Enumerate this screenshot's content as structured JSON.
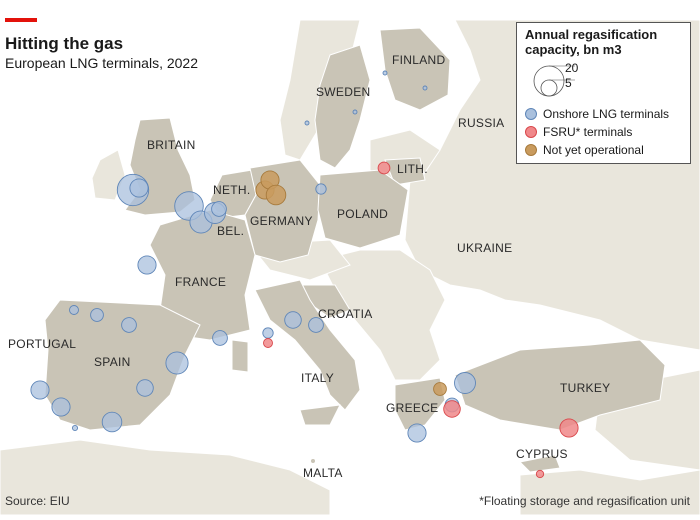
{
  "header": {
    "title": "Hitting the gas",
    "subtitle": "European LNG terminals, 2022"
  },
  "legend": {
    "title": "Annual regasification capacity, bn m3",
    "size_large": "20",
    "size_small": "5",
    "items": [
      {
        "label": "Onshore LNG terminals",
        "color": "#a9c0dd",
        "stroke": "#5f86b8"
      },
      {
        "label": "FSRU* terminals",
        "color": "#f0888a",
        "stroke": "#d9474b"
      },
      {
        "label": "Not yet operational",
        "color": "#c99b5e",
        "stroke": "#a77a3c"
      }
    ]
  },
  "countries": [
    {
      "key": "finland",
      "label": "FINLAND"
    },
    {
      "key": "sweden",
      "label": "SWEDEN"
    },
    {
      "key": "russia",
      "label": "RUSSIA"
    },
    {
      "key": "britain",
      "label": "BRITAIN"
    },
    {
      "key": "lith",
      "label": "LITH."
    },
    {
      "key": "neth",
      "label": "NETH."
    },
    {
      "key": "germany",
      "label": "GERMANY"
    },
    {
      "key": "poland",
      "label": "POLAND"
    },
    {
      "key": "bel",
      "label": "BEL."
    },
    {
      "key": "ukraine",
      "label": "UKRAINE"
    },
    {
      "key": "france",
      "label": "FRANCE"
    },
    {
      "key": "croatia",
      "label": "CROATIA"
    },
    {
      "key": "portugal",
      "label": "PORTUGAL"
    },
    {
      "key": "spain",
      "label": "SPAIN"
    },
    {
      "key": "italy",
      "label": "ITALY"
    },
    {
      "key": "turkey",
      "label": "TURKEY"
    },
    {
      "key": "greece",
      "label": "GREECE"
    },
    {
      "key": "cyprus",
      "label": "CYPRUS"
    },
    {
      "key": "malta",
      "label": "MALTA"
    }
  ],
  "colors": {
    "sea": "#ffffff",
    "land_highlight": "#c9c4b6",
    "land_other": "#e9e6dc",
    "onshore_fill": "#a9c0dd",
    "onshore_stroke": "#5f86b8",
    "fsru_fill": "#f0888a",
    "fsru_stroke": "#d9474b",
    "pending_fill": "#c99b5e",
    "pending_stroke": "#a77a3c"
  },
  "terminals": [
    {
      "type": "onshore",
      "capacity": 18
    },
    {
      "type": "onshore",
      "capacity": 6
    },
    {
      "type": "onshore",
      "capacity": 15
    },
    {
      "type": "onshore",
      "capacity": 9
    },
    {
      "type": "onshore",
      "capacity": 8
    },
    {
      "type": "onshore",
      "capacity": 4
    },
    {
      "type": "onshore",
      "capacity": 6
    },
    {
      "type": "onshore",
      "capacity": 1.5
    },
    {
      "type": "onshore",
      "capacity": 3
    },
    {
      "type": "onshore",
      "capacity": 4
    },
    {
      "type": "onshore",
      "capacity": 4
    },
    {
      "type": "onshore",
      "capacity": 9
    },
    {
      "type": "onshore",
      "capacity": 5
    },
    {
      "type": "onshore",
      "capacity": 7
    },
    {
      "type": "onshore",
      "capacity": 6
    },
    {
      "type": "onshore",
      "capacity": 0.5
    },
    {
      "type": "onshore",
      "capacity": 6
    },
    {
      "type": "onshore",
      "capacity": 5
    },
    {
      "type": "onshore",
      "capacity": 2
    },
    {
      "type": "onshore",
      "capacity": 4
    },
    {
      "type": "onshore",
      "capacity": 2
    },
    {
      "type": "onshore",
      "capacity": 0.3
    },
    {
      "type": "onshore",
      "capacity": 0.3
    },
    {
      "type": "onshore",
      "capacity": 0.3
    },
    {
      "type": "onshore",
      "capacity": 0.3
    },
    {
      "type": "onshore",
      "capacity": 8
    },
    {
      "type": "onshore",
      "capacity": 6
    },
    {
      "type": "onshore",
      "capacity": 3.5
    },
    {
      "type": "fsru",
      "capacity": 2.5
    },
    {
      "type": "fsru",
      "capacity": 1.5
    },
    {
      "type": "fsru",
      "capacity": 6
    },
    {
      "type": "fsru",
      "capacity": 5
    },
    {
      "type": "fsru",
      "capacity": 1
    },
    {
      "type": "pending",
      "capacity": 6
    },
    {
      "type": "pending",
      "capacity": 6
    },
    {
      "type": "pending",
      "capacity": 7
    },
    {
      "type": "pending",
      "capacity": 3
    }
  ],
  "footer": {
    "source": "Source: EIU",
    "footnote": "*Floating storage and regasification unit"
  }
}
